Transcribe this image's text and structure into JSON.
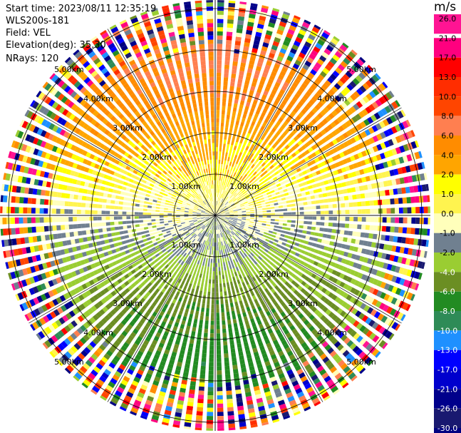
{
  "info": {
    "start_time": "Start time: 2023/08/11 12:35:19",
    "system": "WLS200s-181",
    "field": "Field: VEL",
    "elevation": "Elevation(deg): 35.30",
    "nrays": "NRays: 120"
  },
  "colorbar": {
    "unit": "m/s",
    "tick_labels": [
      "26.0",
      "21.0",
      "17.0",
      "13.0",
      "10.0",
      "8.0",
      "6.0",
      "4.0",
      "2.0",
      "1.0",
      "0.0",
      "-1.0",
      "-2.0",
      "-4.0",
      "-6.0",
      "-8.0",
      "-10.0",
      "-13.0",
      "-17.0",
      "-21.0",
      "-26.0",
      "-30.0"
    ],
    "colors": [
      "#ff1493",
      "#ff007f",
      "#ff0000",
      "#ff2d00",
      "#ff4500",
      "#ff7f50",
      "#ff8c00",
      "#ffa500",
      "#ffff00",
      "#fff44f",
      "#ffffbb",
      "#708090",
      "#9acd32",
      "#6b8e23",
      "#228b22",
      "#2e8b57",
      "#1e90ff",
      "#0000ff",
      "#0000cd",
      "#00008b",
      "#191970",
      "#000080"
    ]
  },
  "chart_data": {
    "type": "ppi",
    "field": "VEL",
    "units": "m/s",
    "elevation_deg": 35.3,
    "nrays": 120,
    "range_rings_km": [
      1.0,
      2.0,
      3.0,
      4.0,
      5.0
    ],
    "range_ring_labels": [
      "1.00km",
      "2.00km",
      "3.00km",
      "4.00km",
      "5.00km"
    ],
    "spoke_azimuths_deg": [
      0,
      30,
      60,
      90,
      120,
      150,
      180,
      210,
      240,
      270,
      300,
      330
    ],
    "velocity_by_range": [
      {
        "range_km": 0.3,
        "north": 0.0,
        "south": -1.5
      },
      {
        "range_km": 1.0,
        "north": 1.5,
        "south": -2.0
      },
      {
        "range_km": 2.0,
        "north": 3.0,
        "south": -5.0
      },
      {
        "range_km": 3.0,
        "north": 6.0,
        "south": -7.0
      },
      {
        "range_km": 4.0,
        "north": 6.5,
        "south": -7.0
      }
    ]
  }
}
